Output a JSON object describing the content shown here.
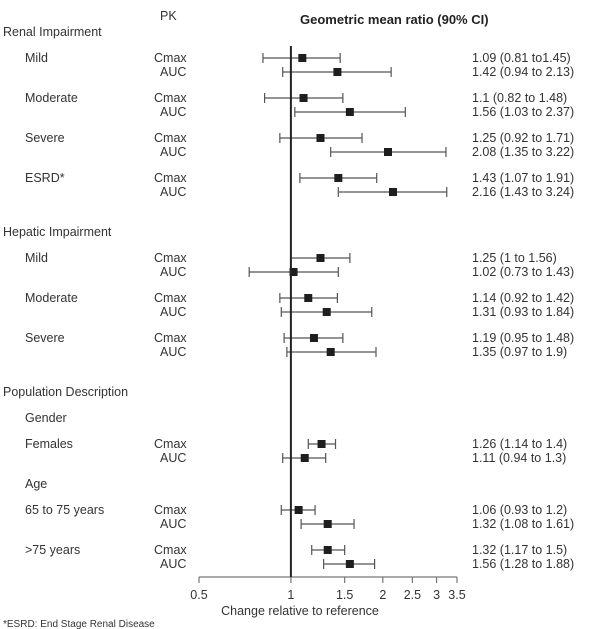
{
  "chart_data": {
    "type": "forest",
    "title": "Geometric mean ratio (90% CI)",
    "pk_header": "PK",
    "xlabel": "Change relative to reference",
    "x_scale": "log",
    "xlim": [
      0.5,
      3.5
    ],
    "reference_line": 1,
    "xticks": [
      0.5,
      1,
      1.5,
      2,
      2.5,
      3,
      3.5
    ],
    "xtick_labels": [
      "0.5",
      "1",
      "1.5",
      "2",
      "2.5",
      "3",
      "3.5"
    ],
    "footnote": "*ESRD: End Stage Renal Disease",
    "rows": [
      {
        "kind": "section",
        "label": "Renal Impairment"
      },
      {
        "kind": "subgroup",
        "label": "Mild",
        "pk": "Cmax",
        "est": 1.09,
        "lo": 0.81,
        "hi": 1.45,
        "text": "1.09 (0.81 to1.45)"
      },
      {
        "kind": "cont",
        "pk": "AUC",
        "est": 1.42,
        "lo": 0.94,
        "hi": 2.13,
        "text": "1.42 (0.94 to 2.13)"
      },
      {
        "kind": "subgroup",
        "label": "Moderate",
        "pk": "Cmax",
        "est": 1.1,
        "lo": 0.82,
        "hi": 1.48,
        "text": "1.1 (0.82 to 1.48)"
      },
      {
        "kind": "cont",
        "pk": "AUC",
        "est": 1.56,
        "lo": 1.03,
        "hi": 2.37,
        "text": "1.56 (1.03 to 2.37)"
      },
      {
        "kind": "subgroup",
        "label": "Severe",
        "pk": "Cmax",
        "est": 1.25,
        "lo": 0.92,
        "hi": 1.71,
        "text": "1.25 (0.92 to 1.71)"
      },
      {
        "kind": "cont",
        "pk": "AUC",
        "est": 2.08,
        "lo": 1.35,
        "hi": 3.22,
        "text": "2.08 (1.35 to 3.22)"
      },
      {
        "kind": "subgroup",
        "label": "ESRD*",
        "pk": "Cmax",
        "est": 1.43,
        "lo": 1.07,
        "hi": 1.91,
        "text": "1.43 (1.07 to 1.91)"
      },
      {
        "kind": "cont",
        "pk": "AUC",
        "est": 2.16,
        "lo": 1.43,
        "hi": 3.24,
        "text": "2.16 (1.43 to 3.24)"
      },
      {
        "kind": "section",
        "label": "Hepatic Impairment"
      },
      {
        "kind": "subgroup",
        "label": "Mild",
        "pk": "Cmax",
        "est": 1.25,
        "lo": 1.0,
        "hi": 1.56,
        "text": "1.25 (1 to 1.56)"
      },
      {
        "kind": "cont",
        "pk": "AUC",
        "est": 1.02,
        "lo": 0.73,
        "hi": 1.43,
        "text": "1.02 (0.73 to 1.43)"
      },
      {
        "kind": "subgroup",
        "label": "Moderate",
        "pk": "Cmax",
        "est": 1.14,
        "lo": 0.92,
        "hi": 1.42,
        "text": "1.14 (0.92 to 1.42)"
      },
      {
        "kind": "cont",
        "pk": "AUC",
        "est": 1.31,
        "lo": 0.93,
        "hi": 1.84,
        "text": "1.31 (0.93 to 1.84)"
      },
      {
        "kind": "subgroup",
        "label": "Severe",
        "pk": "Cmax",
        "est": 1.19,
        "lo": 0.95,
        "hi": 1.48,
        "text": "1.19 (0.95 to 1.48)"
      },
      {
        "kind": "cont",
        "pk": "AUC",
        "est": 1.35,
        "lo": 0.97,
        "hi": 1.9,
        "text": "1.35 (0.97 to 1.9)"
      },
      {
        "kind": "section",
        "label": "Population Description"
      },
      {
        "kind": "subsection",
        "label": "Gender"
      },
      {
        "kind": "subgroup",
        "label": "Females",
        "pk": "Cmax",
        "est": 1.26,
        "lo": 1.14,
        "hi": 1.4,
        "text": "1.26 (1.14 to 1.4)"
      },
      {
        "kind": "cont",
        "pk": "AUC",
        "est": 1.11,
        "lo": 0.94,
        "hi": 1.3,
        "text": "1.11 (0.94 to 1.3)"
      },
      {
        "kind": "subsection",
        "label": "Age"
      },
      {
        "kind": "subgroup",
        "label": "65 to 75 years",
        "pk": "Cmax",
        "est": 1.06,
        "lo": 0.93,
        "hi": 1.2,
        "text": "1.06 (0.93 to 1.2)"
      },
      {
        "kind": "cont",
        "pk": "AUC",
        "est": 1.32,
        "lo": 1.08,
        "hi": 1.61,
        "text": "1.32 (1.08 to 1.61)"
      },
      {
        "kind": "subgroup",
        "label": ">75 years",
        "pk": "Cmax",
        "est": 1.32,
        "lo": 1.17,
        "hi": 1.5,
        "text": "1.32 (1.17 to 1.5)"
      },
      {
        "kind": "cont",
        "pk": "AUC",
        "est": 1.56,
        "lo": 1.28,
        "hi": 1.88,
        "text": "1.56 (1.28 to 1.88)"
      }
    ]
  }
}
